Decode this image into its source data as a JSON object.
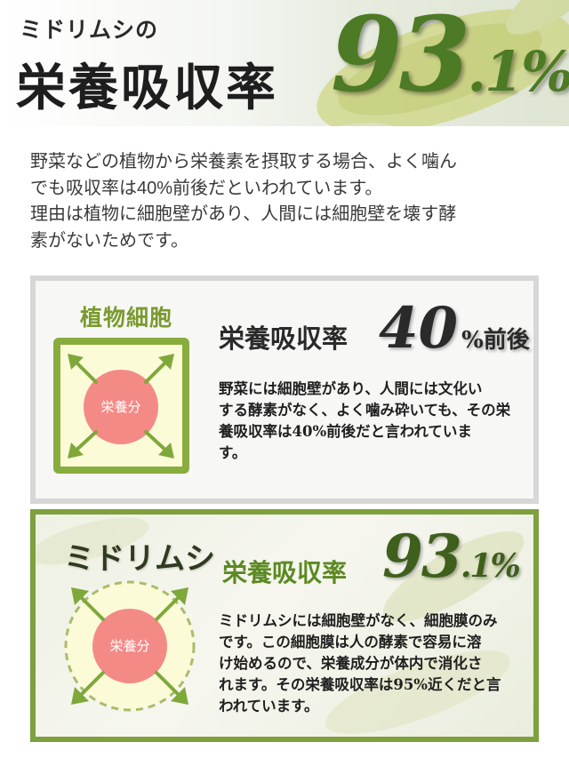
{
  "hero": {
    "subtitle": "ミドリムシの",
    "title": "栄養吸収率",
    "rate_int": "93",
    "rate_dec": ".1%"
  },
  "intro": {
    "line1": "野菜などの植物から栄養素を摂取する場合、よく噛ん",
    "line2": "でも吸収率は40%前後だといわれています。",
    "line3": "理由は植物に細胞壁があり、人間には細胞壁を壊す酵",
    "line4": "素がないためです。"
  },
  "plant_card": {
    "title": "植物細胞",
    "nutrient_label": "栄養分",
    "heading": "栄養吸収率",
    "rate": "40",
    "rate_suffix": "%前後",
    "text_line1": "野菜には細胞壁があり、人間には文化い",
    "text_line2": "する酵素がなく、よく噛み砕いても、その栄",
    "text_line3": "養吸収率は40%前後だと言われていま",
    "text_line4": "す。"
  },
  "midori_card": {
    "title": "ミドリムシ",
    "nutrient_label": "栄養分",
    "heading": "栄養吸収率",
    "rate_int": "93",
    "rate_dec": ".1%",
    "text_line1": "ミドリムシには細胞壁がなく、細胞膜のみ",
    "text_line2": "です。この細胞膜は人の酵素で容易に溶",
    "text_line3": "け始めるので、栄養成分が体内で消化さ",
    "text_line4": "れます。その栄養吸収率は95%近くだと言",
    "text_line5": "われています。"
  },
  "colors": {
    "green_dark": "#4d7a25",
    "green_frame": "#88ad3e",
    "nutrient_circle": "#f48a86",
    "cell_fill": "#fbfbd8"
  },
  "icons": [
    "arrow-icon",
    "euglena-background-image"
  ]
}
